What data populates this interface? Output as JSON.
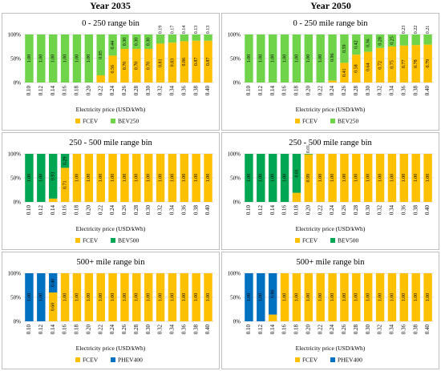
{
  "years": [
    "Year 2035",
    "Year 2050"
  ],
  "colors": {
    "fcev": "#FFC000",
    "bev250": "#70D44B",
    "bev500": "#00A651",
    "phev400": "#0070C0",
    "grid": "#d9d9d9"
  },
  "chart_data": [
    {
      "type": "bar",
      "stacked": true,
      "title": "0 - 250 range bin",
      "xlabel": "Electricity price (USD/kWh)",
      "ylabel": "",
      "y_ticks": [
        "0%",
        "50%",
        "100%"
      ],
      "ylim": [
        0,
        1
      ],
      "categories": [
        "0.10",
        "0.12",
        "0.14",
        "0.16",
        "0.18",
        "0.20",
        "0.22",
        "0.24",
        "0.26",
        "0.28",
        "0.30",
        "0.32",
        "0.34",
        "0.36",
        "0.38",
        "0.40"
      ],
      "series": [
        {
          "name": "FCEV",
          "color": "#FFC000",
          "values": [
            0,
            0,
            0,
            0,
            0,
            0,
            0.15,
            0.56,
            0.7,
            0.7,
            0.7,
            0.81,
            0.83,
            0.86,
            0.87,
            0.87
          ],
          "labels": [
            "",
            "",
            "",
            "",
            "",
            "",
            "0.15",
            "0.56",
            "0.70",
            "0.70",
            "0.70",
            "0.81",
            "0.83",
            "0.86",
            "0.87",
            "0.87"
          ]
        },
        {
          "name": "BEV250",
          "color": "#70D44B",
          "values": [
            1,
            1,
            1,
            1,
            1,
            1,
            0.85,
            0.44,
            0.3,
            0.3,
            0.3,
            0.19,
            0.17,
            0.14,
            0.13,
            0.13
          ],
          "labels": [
            "1.00",
            "1.00",
            "1.00",
            "1.00",
            "1.00",
            "1.00",
            "0.85",
            "0.44",
            "0.30",
            "0.30",
            "0.30",
            "0.19",
            "0.17",
            "0.14",
            "0.13",
            "0.13"
          ]
        }
      ]
    },
    {
      "type": "bar",
      "stacked": true,
      "title": "0 - 250 mile range bin",
      "xlabel": "Electricity price (USD/kWh)",
      "ylabel": "",
      "y_ticks": [
        "0%",
        "50%",
        "100%"
      ],
      "ylim": [
        0,
        1
      ],
      "categories": [
        "0.10",
        "0.12",
        "0.14",
        "0.16",
        "0.18",
        "0.20",
        "0.22",
        "0.24",
        "0.26",
        "0.28",
        "0.30",
        "0.32",
        "0.34",
        "0.36",
        "0.38",
        "0.40"
      ],
      "series": [
        {
          "name": "FCEV",
          "color": "#FFC000",
          "values": [
            0,
            0,
            0,
            0,
            0,
            0,
            0,
            0.04,
            0.41,
            0.58,
            0.64,
            0.72,
            0.75,
            0.77,
            0.78,
            0.79
          ],
          "labels": [
            "",
            "",
            "",
            "",
            "",
            "",
            "",
            "0.04",
            "0.41",
            "0.58",
            "0.64",
            "0.72",
            "0.75",
            "0.77",
            "0.78",
            "0.79"
          ]
        },
        {
          "name": "BEV250",
          "color": "#70D44B",
          "values": [
            1,
            1,
            1,
            1,
            1,
            1,
            1,
            0.96,
            0.59,
            0.42,
            0.36,
            0.28,
            0.25,
            0.23,
            0.22,
            0.21
          ],
          "labels": [
            "1.00",
            "1.00",
            "1.00",
            "1.00",
            "1.00",
            "1.00",
            "1.00",
            "0.96",
            "0.59",
            "0.42",
            "0.36",
            "0.28",
            "0.25",
            "0.23",
            "0.22",
            "0.21"
          ]
        }
      ]
    },
    {
      "type": "bar",
      "stacked": true,
      "title": "250 - 500 mile range bin",
      "xlabel": "Electricity price (USD/kWh)",
      "ylabel": "",
      "y_ticks": [
        "0%",
        "50%",
        "100%"
      ],
      "ylim": [
        0,
        1
      ],
      "categories": [
        "0.10",
        "0.12",
        "0.14",
        "0.16",
        "0.18",
        "0.20",
        "0.22",
        "0.24",
        "0.26",
        "0.28",
        "0.30",
        "0.32",
        "0.34",
        "0.36",
        "0.38",
        "0.40"
      ],
      "series": [
        {
          "name": "FCEV",
          "color": "#FFC000",
          "values": [
            0,
            0,
            0.07,
            0.71,
            1,
            1,
            1,
            1,
            1,
            1,
            1,
            1,
            1,
            1,
            1,
            1
          ],
          "labels": [
            "",
            "",
            "0.07",
            "0.71",
            "1.00",
            "1.00",
            "1.00",
            "1.00",
            "1.00",
            "1.00",
            "1.00",
            "1.00",
            "1.00",
            "1.00",
            "1.00",
            "1.00"
          ]
        },
        {
          "name": "BEV500",
          "color": "#00A651",
          "values": [
            1,
            1,
            0.93,
            0.29,
            0,
            0,
            0,
            0,
            0,
            0,
            0,
            0,
            0,
            0,
            0,
            0
          ],
          "labels": [
            "1.00",
            "1.00",
            "0.93",
            "0.29",
            "",
            "",
            "",
            "",
            "",
            "",
            "",
            "",
            "",
            "",
            "",
            ""
          ]
        }
      ]
    },
    {
      "type": "bar",
      "stacked": true,
      "title": "250 - 500 mile range bin",
      "xlabel": "Electricity price (USD/kWh)",
      "ylabel": "",
      "y_ticks": [
        "0%",
        "50%",
        "100%"
      ],
      "ylim": [
        0,
        1
      ],
      "categories": [
        "0.10",
        "0.12",
        "0.14",
        "0.16",
        "0.18",
        "0.20",
        "0.22",
        "0.24",
        "0.26",
        "0.28",
        "0.30",
        "0.32",
        "0.34",
        "0.36",
        "0.38",
        "0.40"
      ],
      "series": [
        {
          "name": "FCEV",
          "color": "#FFC000",
          "values": [
            0,
            0,
            0,
            0,
            0.19,
            0.99,
            1,
            1,
            1,
            1,
            1,
            1,
            1,
            1,
            1,
            1
          ],
          "labels": [
            "",
            "",
            "",
            "",
            "0.19",
            "0.99",
            "1.00",
            "1.00",
            "1.00",
            "1.00",
            "1.00",
            "1.00",
            "1.00",
            "1.00",
            "1.00",
            "1.00"
          ]
        },
        {
          "name": "BEV500",
          "color": "#00A651",
          "values": [
            1,
            1,
            1,
            1,
            0.81,
            0.01,
            0,
            0,
            0,
            0,
            0,
            0,
            0,
            0,
            0,
            0
          ],
          "labels": [
            "1.00",
            "1.00",
            "1.00",
            "1.00",
            "0.81",
            "0.01",
            "",
            "",
            "",
            "",
            "",
            "",
            "",
            "",
            "",
            ""
          ]
        }
      ]
    },
    {
      "type": "bar",
      "stacked": true,
      "title": "500+ mile range bin",
      "xlabel": "Electricity price (USD/kWh)",
      "ylabel": "",
      "y_ticks": [
        "0%",
        "50%",
        "100%"
      ],
      "ylim": [
        0,
        1
      ],
      "categories": [
        "0.10",
        "0.12",
        "0.14",
        "0.16",
        "0.18",
        "0.20",
        "0.22",
        "0.24",
        "0.26",
        "0.28",
        "0.30",
        "0.32",
        "0.34",
        "0.36",
        "0.38",
        "0.40"
      ],
      "series": [
        {
          "name": "FCEV",
          "color": "#FFC000",
          "values": [
            0,
            0,
            0.6,
            1,
            1,
            1,
            1,
            1,
            1,
            1,
            1,
            1,
            1,
            1,
            1,
            1
          ],
          "labels": [
            "",
            "",
            "0.60",
            "1.00",
            "1.00",
            "1.00",
            "1.00",
            "1.00",
            "1.00",
            "1.00",
            "1.00",
            "1.00",
            "1.00",
            "1.00",
            "1.00",
            "1.00"
          ]
        },
        {
          "name": "PHEV400",
          "color": "#0070C0",
          "values": [
            1,
            1,
            0.4,
            0,
            0,
            0,
            0,
            0,
            0,
            0,
            0,
            0,
            0,
            0,
            0,
            0
          ],
          "labels": [
            "1.00",
            "1.00",
            "0.40",
            "",
            "",
            "",
            "",
            "",
            "",
            "",
            "",
            "",
            "",
            "",
            "",
            ""
          ]
        }
      ]
    },
    {
      "type": "bar",
      "stacked": true,
      "title": "500+ mile range bin",
      "xlabel": "Electricity price (USD/kWh)",
      "ylabel": "",
      "y_ticks": [
        "0%",
        "50%",
        "100%"
      ],
      "ylim": [
        0,
        1
      ],
      "categories": [
        "0.10",
        "0.12",
        "0.14",
        "0.16",
        "0.18",
        "0.20",
        "0.22",
        "0.24",
        "0.26",
        "0.28",
        "0.30",
        "0.32",
        "0.34",
        "0.36",
        "0.38",
        "0.40"
      ],
      "series": [
        {
          "name": "FCEV",
          "color": "#FFC000",
          "values": [
            0,
            0,
            0.14,
            1,
            1,
            1,
            1,
            1,
            1,
            1,
            1,
            1,
            1,
            1,
            1,
            1
          ],
          "labels": [
            "",
            "",
            "0.14",
            "1.00",
            "1.00",
            "1.00",
            "1.00",
            "1.00",
            "1.00",
            "1.00",
            "1.00",
            "1.00",
            "1.00",
            "1.00",
            "1.00",
            "1.00"
          ]
        },
        {
          "name": "PHEV400",
          "color": "#0070C0",
          "values": [
            1,
            1,
            0.86,
            0,
            0,
            0,
            0,
            0,
            0,
            0,
            0,
            0,
            0,
            0,
            0,
            0
          ],
          "labels": [
            "1.00",
            "1.00",
            "0.86",
            "",
            "",
            "",
            "",
            "",
            "",
            "",
            "",
            "",
            "",
            "",
            "",
            ""
          ]
        }
      ]
    }
  ]
}
